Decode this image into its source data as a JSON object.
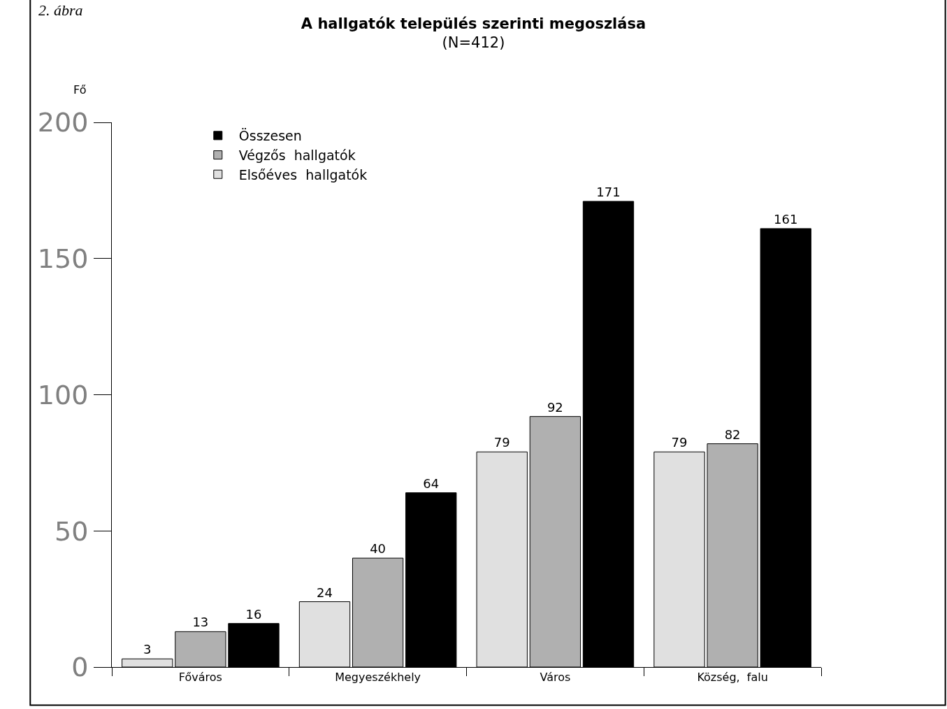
{
  "chart_data": {
    "type": "bar",
    "title": "A hallgatók település szerinti megoszlása",
    "subtitle": "(N=412)",
    "ylabel": "Fő",
    "annotations": [
      "2. ábra"
    ],
    "categories": [
      "Főváros",
      "Megyeszékhely",
      "Város",
      "Község,  falu"
    ],
    "series": [
      {
        "name": "Elsőéves  hallgatók",
        "color": "#e0e0e0",
        "values": [
          3,
          24,
          79,
          79
        ]
      },
      {
        "name": "Végzős  hallgatók",
        "color": "#b0b0b0",
        "values": [
          13,
          40,
          92,
          82
        ]
      },
      {
        "name": "Összesen",
        "color": "#000000",
        "values": [
          16,
          64,
          171,
          161
        ]
      }
    ],
    "ylim": [
      0,
      200
    ],
    "yticks": [
      0,
      50,
      100,
      150,
      200
    ],
    "legend": "top left",
    "data_labels": true
  }
}
